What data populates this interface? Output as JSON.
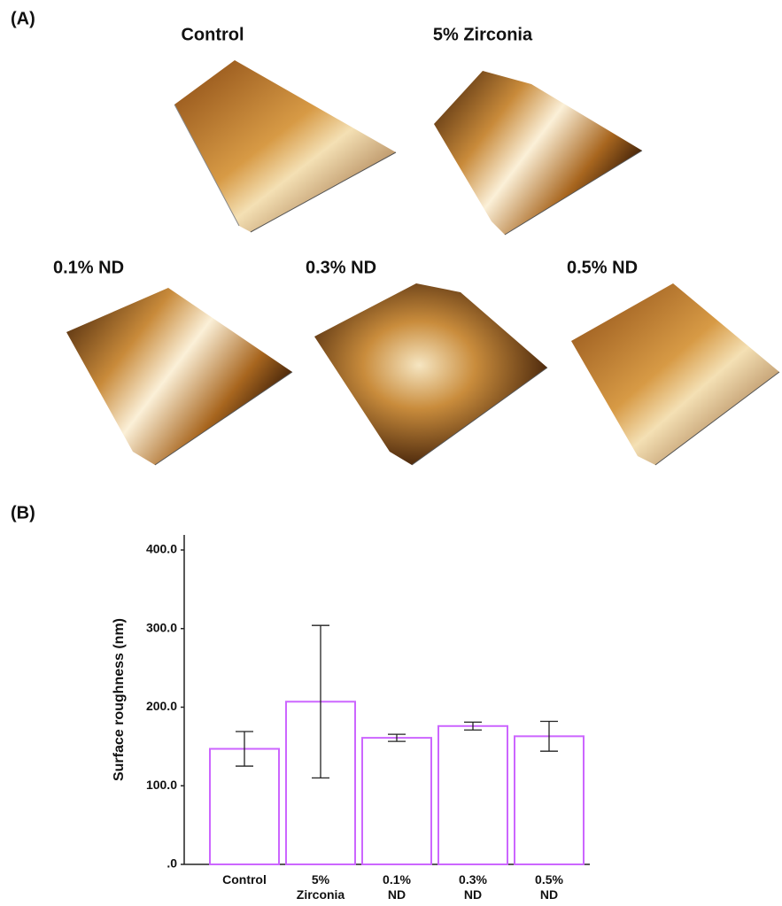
{
  "panel_a": {
    "label": "(A)",
    "titles": [
      "Control",
      "5% Zirconia",
      "0.1% ND",
      "0.3% ND",
      "0.5% ND"
    ]
  },
  "chart_data": {
    "type": "bar",
    "panel_label": "(B)",
    "y_label": "Surface roughness (nm)",
    "categories": [
      "Control",
      "5% Zirconia",
      "0.1% ND",
      "0.3% ND",
      "0.5% ND"
    ],
    "values": [
      147,
      207,
      161,
      176,
      163
    ],
    "errors": [
      22,
      97,
      4.5,
      5,
      19
    ],
    "color": "#cc66ff",
    "ylim": [
      0,
      400
    ],
    "yticks": [
      {
        "value": 0,
        "label": ".0"
      },
      {
        "value": 100,
        "label": "100.0"
      },
      {
        "value": 200,
        "label": "200.0"
      },
      {
        "value": 300,
        "label": "300.0"
      },
      {
        "value": 400,
        "label": "400.0"
      }
    ],
    "grid": false
  }
}
